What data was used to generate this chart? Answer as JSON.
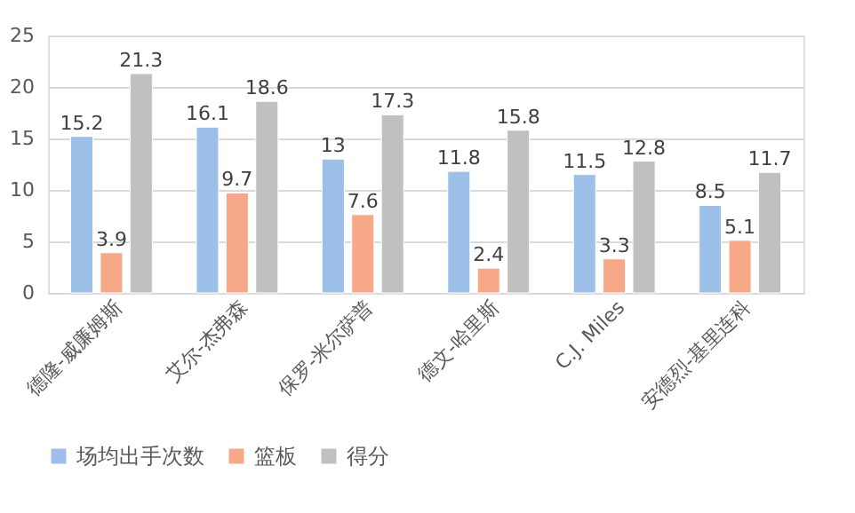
{
  "chart_data": {
    "type": "bar",
    "categories": [
      "德隆-威廉姆斯",
      "艾尔-杰弗森",
      "保罗-米尔萨普",
      "德文-哈里斯",
      "C.J. Miles",
      "安德烈-基里连科"
    ],
    "series": [
      {
        "name": "场均出手次数",
        "color": "#9dc0e8",
        "values": [
          15.2,
          16.1,
          13,
          11.8,
          11.5,
          8.5
        ]
      },
      {
        "name": "篮板",
        "color": "#f7a889",
        "values": [
          3.9,
          9.7,
          7.6,
          2.4,
          3.3,
          5.1
        ]
      },
      {
        "name": "得分",
        "color": "#c0c0c0",
        "values": [
          21.3,
          18.6,
          17.3,
          15.8,
          12.8,
          11.7
        ]
      }
    ],
    "ylim": [
      0,
      25
    ],
    "yticks": [
      0,
      5,
      10,
      15,
      20,
      25
    ],
    "grid": "y",
    "legend": "bottom",
    "data_labels": true
  }
}
